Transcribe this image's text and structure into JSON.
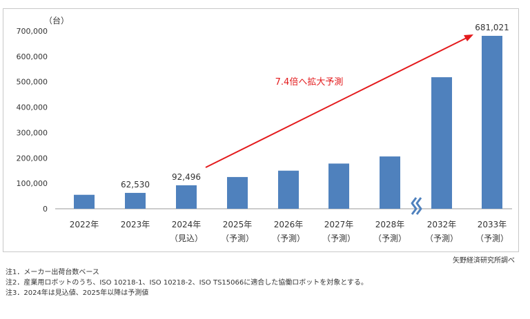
{
  "chart_data": {
    "type": "bar",
    "unit_label": "（台）",
    "categories": [
      [
        "2022年",
        ""
      ],
      [
        "2023年",
        ""
      ],
      [
        "2024年",
        "（見込）"
      ],
      [
        "2025年",
        "（予測）"
      ],
      [
        "2026年",
        "（予測）"
      ],
      [
        "2027年",
        "（予測）"
      ],
      [
        "2028年",
        "（予測）"
      ],
      [
        "2032年",
        "（予測）"
      ],
      [
        "2033年",
        "（予測）"
      ]
    ],
    "values": [
      55000,
      62530,
      92496,
      125000,
      150000,
      178000,
      206000,
      518000,
      681021
    ],
    "data_labels": [
      "",
      "62,530",
      "92,496",
      "",
      "",
      "",
      "",
      "",
      "681,021"
    ],
    "yticks": [
      0,
      100000,
      200000,
      300000,
      400000,
      500000,
      600000,
      700000
    ],
    "ytick_labels": [
      "0",
      "100,000",
      "200,000",
      "300,000",
      "400,000",
      "500,000",
      "600,000",
      "700,000"
    ],
    "ylim": [
      0,
      700000
    ],
    "annotation": "7.4倍へ拡大予測",
    "axis_break_after_category": "2028年",
    "colors": {
      "bar": "#4f81bd",
      "arrow": "#e31a1c",
      "annotation": "#e31a1c",
      "axis": "#999999",
      "break": "#4f81bd"
    }
  },
  "source": "矢野経済研究所調べ",
  "notes": [
    "注1．メーカー出荷台数ベース",
    "注2．産業用ロボットのうち、ISO 10218-1、ISO 10218-2、ISO TS15066に適合した協働ロボットを対象とする。",
    "注3．2024年は見込値、2025年以降は予測値"
  ]
}
